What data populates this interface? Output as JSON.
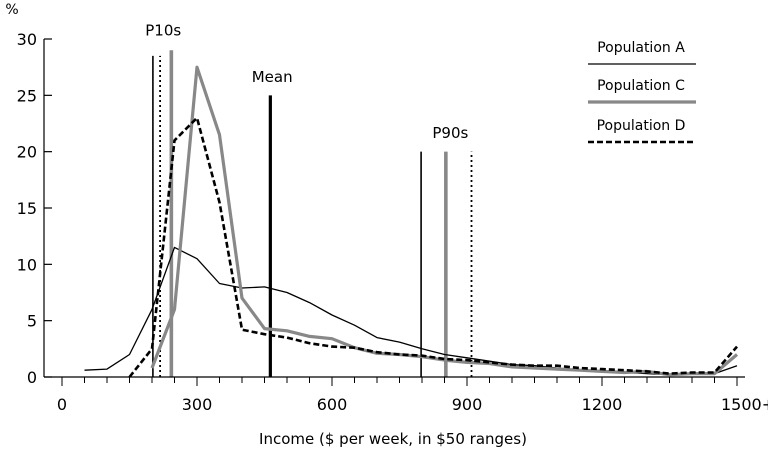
{
  "chart_data": {
    "type": "line",
    "title": "",
    "xlabel": "Income ($ per week, in $50 ranges)",
    "ylabel": "%",
    "xlim": [
      0,
      1500
    ],
    "ylim": [
      0,
      30
    ],
    "x_ticks": [
      0,
      300,
      600,
      900,
      1200,
      1500
    ],
    "x_tick_labels": [
      "0",
      "300",
      "600",
      "900",
      "1200",
      "1500+"
    ],
    "y_ticks": [
      0,
      5,
      10,
      15,
      20,
      25,
      30
    ],
    "y_tick_labels": [
      "0",
      "5",
      "10",
      "15",
      "20",
      "25",
      "30"
    ],
    "grid": false,
    "legend_position": "top-right",
    "series": [
      {
        "name": "Population A",
        "style": "thin-solid",
        "color": "#000000",
        "x": [
          50,
          100,
          150,
          200,
          250,
          300,
          350,
          400,
          450,
          500,
          550,
          600,
          650,
          700,
          750,
          800,
          850,
          900,
          950,
          1000,
          1050,
          1100,
          1150,
          1200,
          1250,
          1300,
          1350,
          1400,
          1450,
          1500
        ],
        "y": [
          0.6,
          0.7,
          2.0,
          6.0,
          11.5,
          10.5,
          8.3,
          7.9,
          8.0,
          7.5,
          6.6,
          5.5,
          4.6,
          3.5,
          3.1,
          2.5,
          2.0,
          1.7,
          1.4,
          1.1,
          1.0,
          0.8,
          0.6,
          0.5,
          0.4,
          0.3,
          0.2,
          0.3,
          0.3,
          1.0
        ]
      },
      {
        "name": "Population C",
        "style": "thick-grey",
        "color": "#888888",
        "x": [
          200,
          250,
          300,
          350,
          400,
          450,
          500,
          550,
          600,
          650,
          700,
          750,
          800,
          850,
          900,
          950,
          1000,
          1050,
          1100,
          1150,
          1200,
          1250,
          1300,
          1350,
          1400,
          1450,
          1500
        ],
        "y": [
          0.8,
          6.0,
          27.5,
          21.5,
          7.0,
          4.3,
          4.1,
          3.6,
          3.4,
          2.6,
          2.1,
          2.0,
          1.8,
          1.5,
          1.3,
          1.2,
          0.9,
          0.8,
          0.7,
          0.6,
          0.5,
          0.4,
          0.5,
          0.2,
          0.3,
          0.3,
          2.0
        ]
      },
      {
        "name": "Population D",
        "style": "thick-dashed",
        "color": "#000000",
        "x": [
          150,
          200,
          250,
          300,
          350,
          400,
          450,
          500,
          550,
          600,
          650,
          700,
          750,
          800,
          850,
          900,
          950,
          1000,
          1050,
          1100,
          1150,
          1200,
          1250,
          1300,
          1350,
          1400,
          1450,
          1500
        ],
        "y": [
          0.0,
          2.5,
          21.0,
          23.0,
          15.5,
          4.2,
          3.8,
          3.5,
          3.0,
          2.7,
          2.6,
          2.2,
          2.0,
          1.9,
          1.6,
          1.5,
          1.3,
          1.1,
          1.0,
          1.0,
          0.8,
          0.7,
          0.6,
          0.5,
          0.3,
          0.4,
          0.4,
          2.7
        ]
      }
    ],
    "reference_lines": [
      {
        "label_group": "P10s",
        "series": "Population A",
        "x": 202,
        "top": 28.5
      },
      {
        "label_group": "P10s",
        "series": "Population D",
        "x": 218,
        "top": 28.5
      },
      {
        "label_group": "P10s",
        "series": "Population C",
        "x": 243,
        "top": 29.0
      },
      {
        "label_group": "Mean",
        "series": "Population A",
        "x": 463,
        "top": 25.0
      },
      {
        "label_group": "P90s",
        "series": "Population A",
        "x": 798,
        "top": 20.0
      },
      {
        "label_group": "P90s",
        "series": "Population C",
        "x": 853,
        "top": 20.0
      },
      {
        "label_group": "P90s",
        "series": "Population D",
        "x": 910,
        "top": 20.0
      }
    ],
    "annotations": [
      {
        "text": "P10s",
        "x": 225,
        "y": 30.3
      },
      {
        "text": "Mean",
        "x": 467,
        "y": 26.2
      },
      {
        "text": "P90s",
        "x": 863,
        "y": 21.2
      }
    ]
  }
}
